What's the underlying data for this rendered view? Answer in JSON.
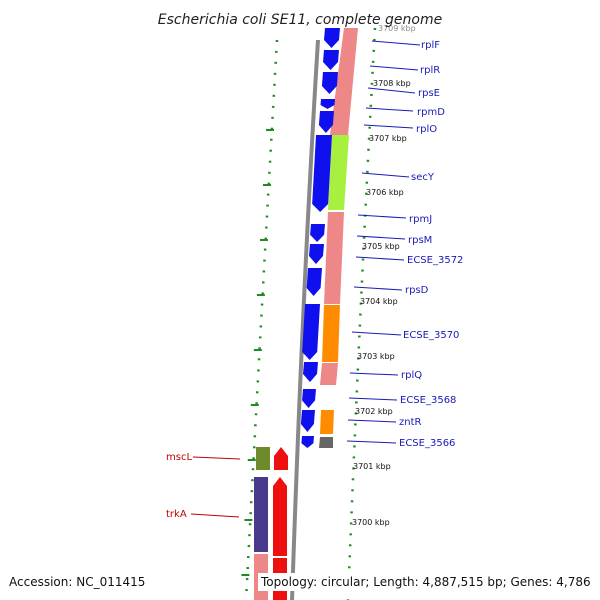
{
  "title": "Escherichia coli SE11, complete genome",
  "accession": "Accession: NC_011415",
  "summary": "Topology: circular; Length: 4,887,515 bp; Genes: 4,786",
  "kbp_labels": [
    "3709 kbp",
    "3708 kbp",
    "3707 kbp",
    "3706 kbp",
    "3705 kbp",
    "3704 kbp",
    "3703 kbp",
    "3702 kbp",
    "3701 kbp",
    "3700 kbp"
  ],
  "genes_right": [
    "rplF",
    "rplR",
    "rpsE",
    "rpmD",
    "rplO",
    "secY",
    "rpmJ",
    "rpsM",
    "ECSE_3572",
    "rpsD",
    "ECSE_3570",
    "rplQ",
    "ECSE_3568",
    "zntR",
    "ECSE_3566"
  ],
  "genes_left": [
    "mscL",
    "trkA"
  ],
  "colors": {
    "blue_gene": "#1010ee",
    "salmon": "#ee8888",
    "lime": "#a8f040",
    "orange": "#ff8c00",
    "gray_gene": "#666666",
    "olive": "#6d8b2a",
    "purple": "#4a3a8c",
    "red_gene": "#ee1010",
    "backbone": "#888888",
    "dots": "#1e8c1e"
  }
}
